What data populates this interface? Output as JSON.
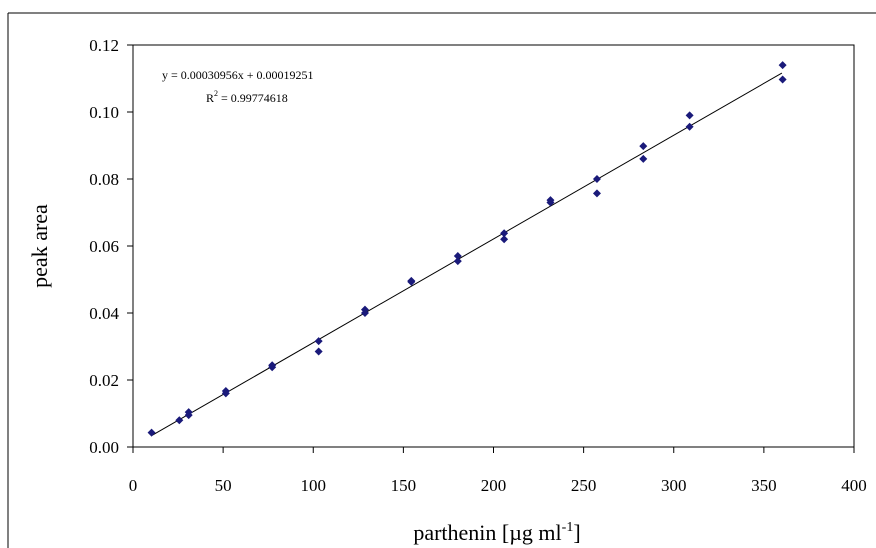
{
  "chart_data": {
    "type": "scatter",
    "title": "",
    "xlabel": {
      "main": "parthenin [",
      "mu": "µ",
      "unit": "g ml",
      "exponent": "-1",
      "close": "]"
    },
    "ylabel": "peak area",
    "xlim": [
      0,
      400
    ],
    "ylim": [
      0.0,
      0.12
    ],
    "xticks": [
      0,
      50,
      100,
      150,
      200,
      250,
      300,
      350,
      400
    ],
    "xtick_labels": [
      "0",
      "50",
      "100",
      "150",
      "200",
      "250",
      "300",
      "350",
      "400"
    ],
    "yticks": [
      0.0,
      0.02,
      0.04,
      0.06,
      0.08,
      0.1,
      0.12
    ],
    "ytick_labels": [
      "0.00",
      "0.02",
      "0.04",
      "0.06",
      "0.08",
      "0.10",
      "0.12"
    ],
    "grid": false,
    "legend": "none",
    "marker_color": "#1a1a7a",
    "line_color": "#000000",
    "series": [
      {
        "points": [
          {
            "x": 10.3,
            "y": 0.0043
          },
          {
            "x": 25.7,
            "y": 0.008
          },
          {
            "x": 30.9,
            "y": 0.0095
          },
          {
            "x": 30.9,
            "y": 0.0104
          },
          {
            "x": 51.5,
            "y": 0.016
          },
          {
            "x": 51.5,
            "y": 0.0167
          },
          {
            "x": 77.2,
            "y": 0.0238
          },
          {
            "x": 77.2,
            "y": 0.0244
          },
          {
            "x": 103.0,
            "y": 0.0285
          },
          {
            "x": 103.0,
            "y": 0.0316
          },
          {
            "x": 128.7,
            "y": 0.04
          },
          {
            "x": 128.7,
            "y": 0.041
          },
          {
            "x": 154.4,
            "y": 0.0493
          },
          {
            "x": 154.4,
            "y": 0.0496
          },
          {
            "x": 180.2,
            "y": 0.0555
          },
          {
            "x": 180.2,
            "y": 0.057
          },
          {
            "x": 205.9,
            "y": 0.062
          },
          {
            "x": 205.9,
            "y": 0.0638
          },
          {
            "x": 231.6,
            "y": 0.073
          },
          {
            "x": 231.6,
            "y": 0.0737
          },
          {
            "x": 257.4,
            "y": 0.0757
          },
          {
            "x": 257.4,
            "y": 0.08
          },
          {
            "x": 283.1,
            "y": 0.086
          },
          {
            "x": 283.1,
            "y": 0.0898
          },
          {
            "x": 308.8,
            "y": 0.0956
          },
          {
            "x": 308.8,
            "y": 0.099
          },
          {
            "x": 360.4,
            "y": 0.1097
          },
          {
            "x": 360.4,
            "y": 0.114
          }
        ]
      }
    ],
    "trendline": {
      "slope": 0.00030956,
      "intercept": 0.00019251,
      "x_start": 10,
      "x_end": 360
    },
    "annotations": {
      "equation": "y = 0.00030956x + 0.00019251",
      "r2_prefix": "R",
      "r2_exponent": "2",
      "r2_value": " = 0.99774618"
    }
  }
}
